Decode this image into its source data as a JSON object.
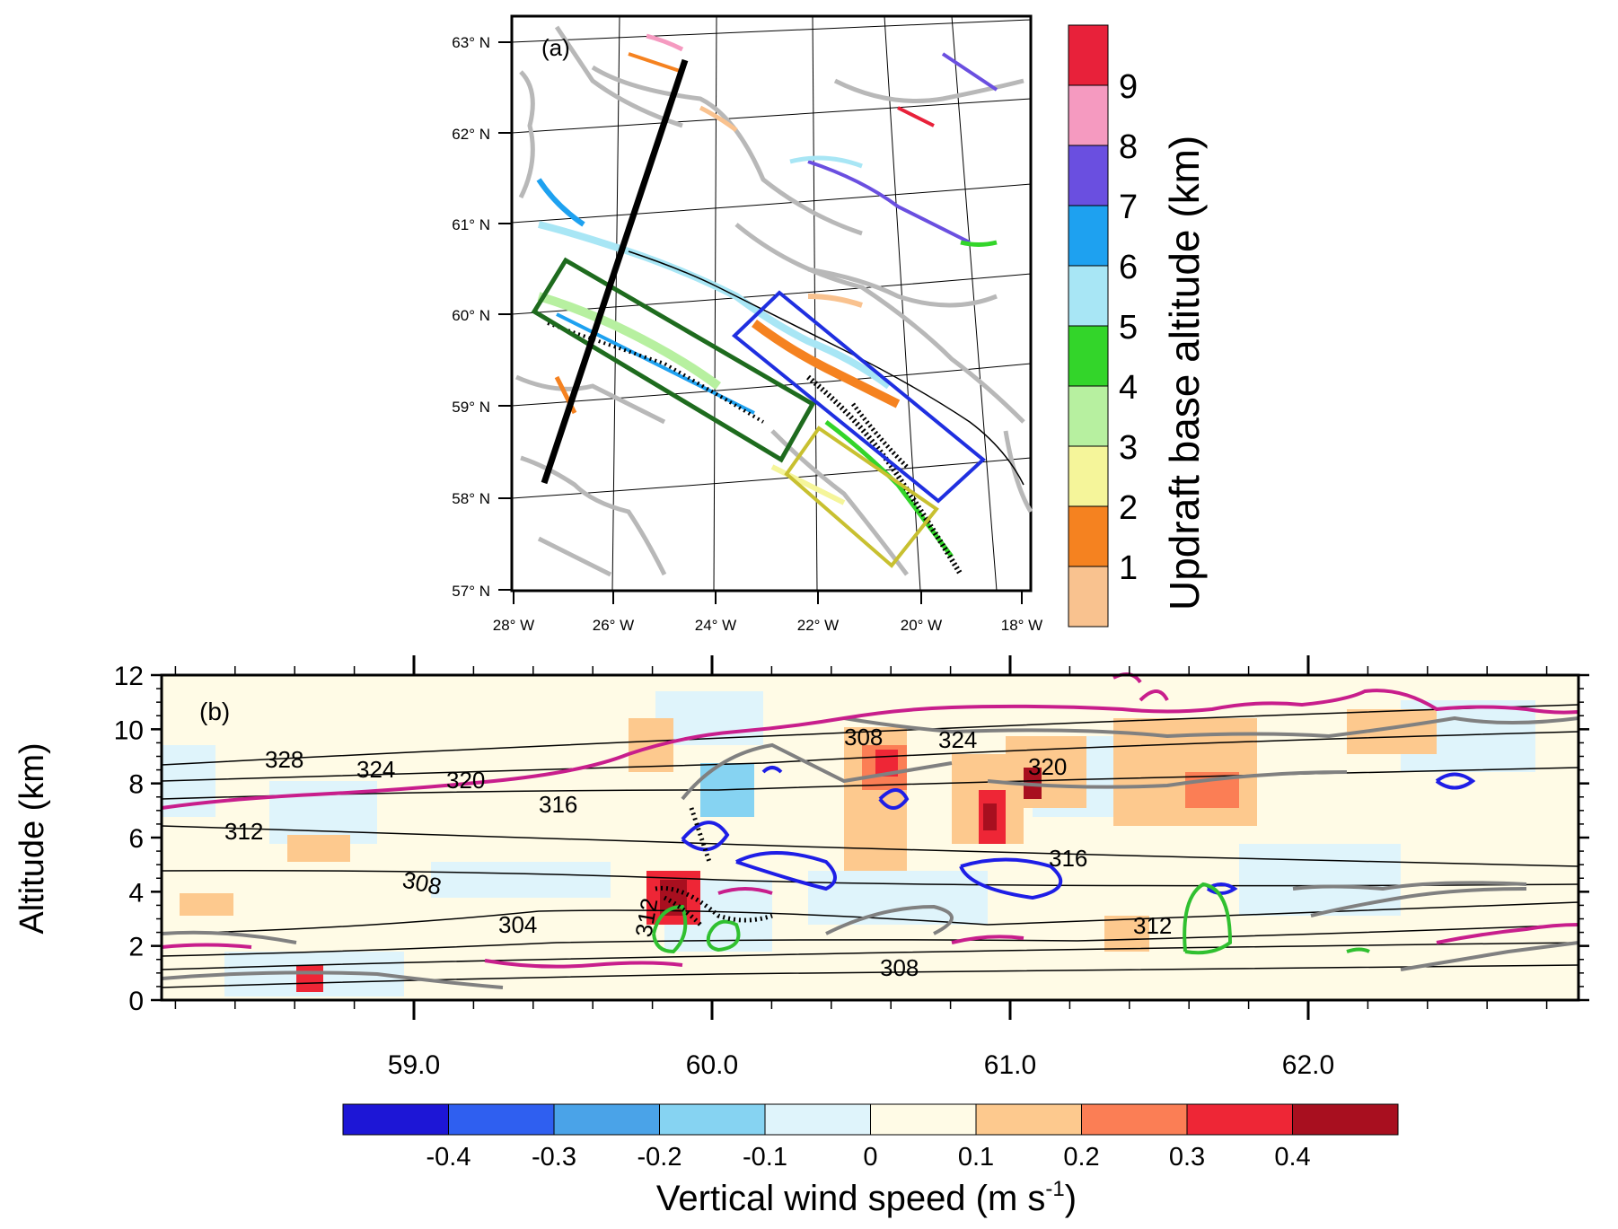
{
  "panel_a": {
    "label": "(a)",
    "lat_labels": [
      "63° N",
      "62° N",
      "61° N",
      "60° N",
      "59° N",
      "58° N",
      "57° N"
    ],
    "lon_labels": [
      "28° W",
      "26° W",
      "24° W",
      "22° W",
      "20° W",
      "18° W"
    ],
    "colorbar": {
      "title": "Updraft base altitude (km)",
      "tick_labels": [
        "1",
        "2",
        "3",
        "4",
        "5",
        "6",
        "7",
        "8",
        "9"
      ],
      "colors": [
        "#f9c28f",
        "#f58220",
        "#f5f59a",
        "#b7f0a0",
        "#33d52a",
        "#a8e6f5",
        "#1ea1f0",
        "#6a4fe0",
        "#f59ac0",
        "#e8213a"
      ]
    },
    "box_colors": {
      "green": "#1e6b1e",
      "blue": "#1f2fe0",
      "yellow": "#c8c030",
      "transect": "#000000"
    }
  },
  "panel_b": {
    "label": "(b)",
    "ylabel": "Altitude (km)",
    "y_ticks": [
      "0",
      "2",
      "4",
      "6",
      "8",
      "10",
      "12"
    ],
    "x_ticks": [
      "59.0",
      "60.0",
      "61.0",
      "62.0"
    ],
    "contour_labels": [
      "328",
      "324",
      "320",
      "316",
      "312",
      "308",
      "304",
      "312",
      "308",
      "312",
      "316",
      "320",
      "324",
      "308"
    ],
    "colorbar": {
      "title_main": "Vertical wind speed (m s",
      "title_sup": "-1",
      "title_end": ")",
      "tick_labels": [
        "-0.4",
        "-0.3",
        "-0.2",
        "-0.1",
        "0",
        "0.1",
        "0.2",
        "0.3",
        "0.4"
      ],
      "colors": [
        "#1d16d6",
        "#2f5ff0",
        "#4aa3e8",
        "#86d3f2",
        "#dff4fb",
        "#fffbe6",
        "#fdc98e",
        "#fb7e55",
        "#ee2636",
        "#a80f1f"
      ]
    },
    "contour_colors": {
      "magenta": "#c81e8c",
      "grey": "#808080",
      "blue": "#1e1ee6",
      "green": "#30c030",
      "isentrope": "#000000"
    }
  }
}
